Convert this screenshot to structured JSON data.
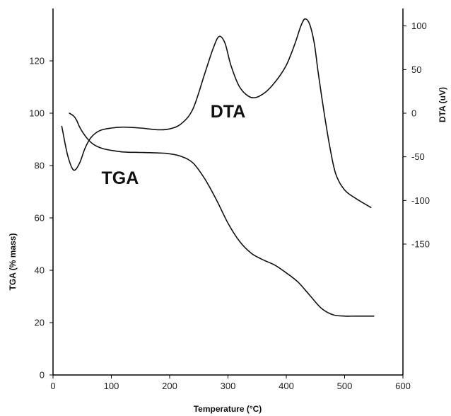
{
  "chart_data": {
    "type": "line",
    "xlabel": "Temperature (°C)",
    "ylabel_left": "TGA (% mass)",
    "ylabel_right": "DTA (uV)",
    "xlim": [
      0,
      600
    ],
    "ylim_left": [
      0,
      140
    ],
    "ylim_right": [
      -300,
      120
    ],
    "x_ticks": [
      "0",
      "100",
      "200",
      "300",
      "400",
      "500",
      "600"
    ],
    "y_left_ticks": [
      "0",
      "20",
      "40",
      "60",
      "80",
      "100",
      "120"
    ],
    "y_right_ticks": [
      "100",
      "50",
      "0",
      "-50",
      "-100",
      "-150"
    ],
    "grid": false,
    "series": [
      {
        "name": "DTA",
        "axis": "right",
        "x": [
          15,
          25,
          35,
          45,
          55,
          65,
          80,
          100,
          120,
          150,
          180,
          200,
          220,
          240,
          260,
          275,
          285,
          295,
          305,
          320,
          340,
          360,
          380,
          400,
          415,
          425,
          432,
          440,
          448,
          455,
          465,
          475,
          485,
          500,
          520,
          545
        ],
        "y": [
          -15,
          -48,
          -65,
          -58,
          -40,
          -28,
          -20,
          -17,
          -16,
          -17,
          -19,
          -18,
          -12,
          5,
          45,
          75,
          88,
          80,
          55,
          30,
          18,
          22,
          35,
          55,
          80,
          100,
          108,
          102,
          80,
          45,
          0,
          -40,
          -70,
          -88,
          -98,
          -108
        ]
      },
      {
        "name": "TGA",
        "axis": "left",
        "x": [
          28,
          35,
          40,
          45,
          50,
          60,
          70,
          85,
          100,
          120,
          150,
          180,
          200,
          220,
          240,
          260,
          280,
          300,
          320,
          340,
          360,
          380,
          400,
          420,
          440,
          460,
          480,
          500,
          520,
          550
        ],
        "y": [
          100,
          99,
          97.5,
          95,
          93,
          90,
          88,
          86.5,
          85.8,
          85.2,
          85,
          84.8,
          84.5,
          83.5,
          81,
          75,
          67,
          58,
          51,
          46.5,
          44,
          42,
          39,
          35.5,
          30.5,
          25.5,
          23,
          22.5,
          22.5,
          22.5
        ]
      }
    ],
    "annotations": [
      {
        "text": "DTA",
        "x": 300,
        "y_right": -5
      },
      {
        "text": "TGA",
        "x": 115,
        "y_left": 73
      }
    ]
  }
}
